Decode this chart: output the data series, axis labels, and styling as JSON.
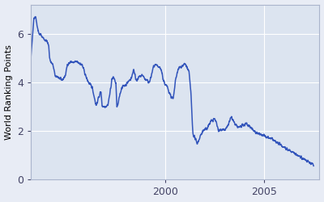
{
  "title": "",
  "ylabel": "World Ranking Points",
  "xlabel": "",
  "xlim": [
    1993.2,
    2007.8
  ],
  "ylim": [
    0,
    7.2
  ],
  "yticks": [
    0,
    2,
    4,
    6
  ],
  "xticks": [
    2000,
    2005
  ],
  "line_color": "#3355bb",
  "background_color": "#e8ecf5",
  "axes_background": "#dce4f0",
  "grid_color": "#ffffff",
  "line_width": 1.1,
  "seed": 42,
  "keypoints": [
    [
      1993.2,
      5.0
    ],
    [
      1993.35,
      6.65
    ],
    [
      1993.45,
      6.7
    ],
    [
      1993.5,
      6.4
    ],
    [
      1993.6,
      6.0
    ],
    [
      1993.7,
      5.95
    ],
    [
      1993.8,
      5.85
    ],
    [
      1993.9,
      5.75
    ],
    [
      1994.0,
      5.7
    ],
    [
      1994.1,
      5.5
    ],
    [
      1994.15,
      5.0
    ],
    [
      1994.2,
      4.85
    ],
    [
      1994.3,
      4.75
    ],
    [
      1994.45,
      4.2
    ],
    [
      1994.55,
      4.25
    ],
    [
      1994.65,
      4.15
    ],
    [
      1994.75,
      4.1
    ],
    [
      1994.85,
      4.15
    ],
    [
      1994.95,
      4.3
    ],
    [
      1995.05,
      4.75
    ],
    [
      1995.15,
      4.8
    ],
    [
      1995.25,
      4.85
    ],
    [
      1995.35,
      4.8
    ],
    [
      1995.5,
      4.85
    ],
    [
      1995.65,
      4.8
    ],
    [
      1995.8,
      4.7
    ],
    [
      1996.0,
      4.2
    ],
    [
      1996.15,
      3.95
    ],
    [
      1996.3,
      3.8
    ],
    [
      1996.5,
      3.05
    ],
    [
      1996.6,
      3.3
    ],
    [
      1996.7,
      3.55
    ],
    [
      1996.75,
      3.6
    ],
    [
      1996.8,
      3.05
    ],
    [
      1996.9,
      3.0
    ],
    [
      1997.05,
      3.05
    ],
    [
      1997.1,
      3.1
    ],
    [
      1997.2,
      3.55
    ],
    [
      1997.3,
      4.15
    ],
    [
      1997.4,
      4.2
    ],
    [
      1997.5,
      3.95
    ],
    [
      1997.55,
      3.0
    ],
    [
      1997.6,
      3.05
    ],
    [
      1997.7,
      3.5
    ],
    [
      1997.8,
      3.8
    ],
    [
      1997.9,
      3.85
    ],
    [
      1998.0,
      3.9
    ],
    [
      1998.1,
      4.0
    ],
    [
      1998.2,
      4.1
    ],
    [
      1998.3,
      4.2
    ],
    [
      1998.35,
      4.4
    ],
    [
      1998.4,
      4.55
    ],
    [
      1998.45,
      4.35
    ],
    [
      1998.5,
      4.15
    ],
    [
      1998.6,
      4.1
    ],
    [
      1998.65,
      4.2
    ],
    [
      1998.75,
      4.25
    ],
    [
      1998.85,
      4.3
    ],
    [
      1999.0,
      4.1
    ],
    [
      1999.1,
      4.05
    ],
    [
      1999.2,
      4.0
    ],
    [
      1999.25,
      4.15
    ],
    [
      1999.3,
      4.3
    ],
    [
      1999.4,
      4.65
    ],
    [
      1999.5,
      4.7
    ],
    [
      1999.6,
      4.65
    ],
    [
      1999.7,
      4.6
    ],
    [
      1999.8,
      4.5
    ],
    [
      1999.9,
      4.1
    ],
    [
      2000.0,
      3.9
    ],
    [
      2000.1,
      3.8
    ],
    [
      2000.2,
      3.6
    ],
    [
      2000.3,
      3.4
    ],
    [
      2000.4,
      3.3
    ],
    [
      2000.45,
      3.6
    ],
    [
      2000.5,
      4.0
    ],
    [
      2000.6,
      4.4
    ],
    [
      2000.7,
      4.6
    ],
    [
      2000.8,
      4.65
    ],
    [
      2000.9,
      4.7
    ],
    [
      2001.0,
      4.75
    ],
    [
      2001.05,
      4.7
    ],
    [
      2001.1,
      4.6
    ],
    [
      2001.15,
      4.5
    ],
    [
      2001.2,
      4.4
    ],
    [
      2001.25,
      4.0
    ],
    [
      2001.3,
      3.5
    ],
    [
      2001.35,
      2.5
    ],
    [
      2001.4,
      1.9
    ],
    [
      2001.5,
      1.7
    ],
    [
      2001.55,
      1.6
    ],
    [
      2001.6,
      1.5
    ],
    [
      2001.65,
      1.55
    ],
    [
      2001.7,
      1.65
    ],
    [
      2001.8,
      1.85
    ],
    [
      2001.9,
      2.0
    ],
    [
      2002.0,
      2.05
    ],
    [
      2002.1,
      2.1
    ],
    [
      2002.2,
      2.25
    ],
    [
      2002.3,
      2.4
    ],
    [
      2002.4,
      2.45
    ],
    [
      2002.5,
      2.5
    ],
    [
      2002.6,
      2.3
    ],
    [
      2002.7,
      2.0
    ],
    [
      2002.8,
      2.05
    ],
    [
      2002.9,
      2.1
    ],
    [
      2003.0,
      2.05
    ],
    [
      2003.1,
      2.1
    ],
    [
      2003.2,
      2.3
    ],
    [
      2003.3,
      2.5
    ],
    [
      2003.35,
      2.55
    ],
    [
      2003.4,
      2.5
    ],
    [
      2003.5,
      2.3
    ],
    [
      2003.6,
      2.2
    ],
    [
      2003.7,
      2.15
    ],
    [
      2003.8,
      2.2
    ],
    [
      2003.9,
      2.2
    ],
    [
      2004.0,
      2.25
    ],
    [
      2004.1,
      2.3
    ],
    [
      2004.2,
      2.25
    ],
    [
      2004.3,
      2.15
    ],
    [
      2004.4,
      2.1
    ],
    [
      2004.5,
      2.0
    ],
    [
      2004.6,
      1.95
    ],
    [
      2004.7,
      1.9
    ],
    [
      2004.8,
      1.85
    ],
    [
      2004.9,
      1.82
    ],
    [
      2005.0,
      1.8
    ],
    [
      2005.1,
      1.75
    ],
    [
      2005.2,
      1.72
    ],
    [
      2005.3,
      1.7
    ],
    [
      2005.4,
      1.68
    ],
    [
      2005.5,
      1.6
    ],
    [
      2005.6,
      1.55
    ],
    [
      2005.7,
      1.5
    ],
    [
      2005.8,
      1.45
    ],
    [
      2005.9,
      1.4
    ],
    [
      2006.0,
      1.35
    ],
    [
      2006.1,
      1.3
    ],
    [
      2006.2,
      1.25
    ],
    [
      2006.3,
      1.2
    ],
    [
      2006.4,
      1.15
    ],
    [
      2006.5,
      1.1
    ],
    [
      2006.6,
      1.05
    ],
    [
      2006.7,
      1.0
    ],
    [
      2006.8,
      0.95
    ],
    [
      2006.9,
      0.9
    ],
    [
      2007.0,
      0.85
    ],
    [
      2007.1,
      0.8
    ],
    [
      2007.2,
      0.75
    ],
    [
      2007.3,
      0.7
    ],
    [
      2007.4,
      0.65
    ],
    [
      2007.5,
      0.6
    ]
  ]
}
